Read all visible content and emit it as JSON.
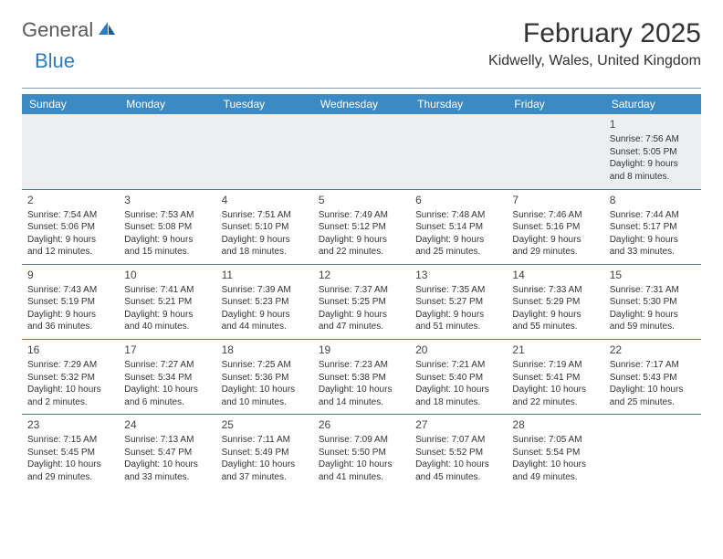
{
  "logo": {
    "part1": "General",
    "part2": "Blue"
  },
  "title": "February 2025",
  "location": "Kidwelly, Wales, United Kingdom",
  "colors": {
    "header_bg": "#3b8ac4",
    "brand_blue": "#2f7ac0",
    "brand_gray": "#5a5a5a",
    "row_sep": "#4a7ca8",
    "shade": "#eceff1"
  },
  "day_headers": [
    "Sunday",
    "Monday",
    "Tuesday",
    "Wednesday",
    "Thursday",
    "Friday",
    "Saturday"
  ],
  "weeks": [
    [
      null,
      null,
      null,
      null,
      null,
      null,
      {
        "n": "1",
        "sr": "Sunrise: 7:56 AM",
        "ss": "Sunset: 5:05 PM",
        "dl": "Daylight: 9 hours and 8 minutes."
      }
    ],
    [
      {
        "n": "2",
        "sr": "Sunrise: 7:54 AM",
        "ss": "Sunset: 5:06 PM",
        "dl": "Daylight: 9 hours and 12 minutes."
      },
      {
        "n": "3",
        "sr": "Sunrise: 7:53 AM",
        "ss": "Sunset: 5:08 PM",
        "dl": "Daylight: 9 hours and 15 minutes."
      },
      {
        "n": "4",
        "sr": "Sunrise: 7:51 AM",
        "ss": "Sunset: 5:10 PM",
        "dl": "Daylight: 9 hours and 18 minutes."
      },
      {
        "n": "5",
        "sr": "Sunrise: 7:49 AM",
        "ss": "Sunset: 5:12 PM",
        "dl": "Daylight: 9 hours and 22 minutes."
      },
      {
        "n": "6",
        "sr": "Sunrise: 7:48 AM",
        "ss": "Sunset: 5:14 PM",
        "dl": "Daylight: 9 hours and 25 minutes."
      },
      {
        "n": "7",
        "sr": "Sunrise: 7:46 AM",
        "ss": "Sunset: 5:16 PM",
        "dl": "Daylight: 9 hours and 29 minutes."
      },
      {
        "n": "8",
        "sr": "Sunrise: 7:44 AM",
        "ss": "Sunset: 5:17 PM",
        "dl": "Daylight: 9 hours and 33 minutes."
      }
    ],
    [
      {
        "n": "9",
        "sr": "Sunrise: 7:43 AM",
        "ss": "Sunset: 5:19 PM",
        "dl": "Daylight: 9 hours and 36 minutes."
      },
      {
        "n": "10",
        "sr": "Sunrise: 7:41 AM",
        "ss": "Sunset: 5:21 PM",
        "dl": "Daylight: 9 hours and 40 minutes."
      },
      {
        "n": "11",
        "sr": "Sunrise: 7:39 AM",
        "ss": "Sunset: 5:23 PM",
        "dl": "Daylight: 9 hours and 44 minutes."
      },
      {
        "n": "12",
        "sr": "Sunrise: 7:37 AM",
        "ss": "Sunset: 5:25 PM",
        "dl": "Daylight: 9 hours and 47 minutes."
      },
      {
        "n": "13",
        "sr": "Sunrise: 7:35 AM",
        "ss": "Sunset: 5:27 PM",
        "dl": "Daylight: 9 hours and 51 minutes."
      },
      {
        "n": "14",
        "sr": "Sunrise: 7:33 AM",
        "ss": "Sunset: 5:29 PM",
        "dl": "Daylight: 9 hours and 55 minutes."
      },
      {
        "n": "15",
        "sr": "Sunrise: 7:31 AM",
        "ss": "Sunset: 5:30 PM",
        "dl": "Daylight: 9 hours and 59 minutes."
      }
    ],
    [
      {
        "n": "16",
        "sr": "Sunrise: 7:29 AM",
        "ss": "Sunset: 5:32 PM",
        "dl": "Daylight: 10 hours and 2 minutes."
      },
      {
        "n": "17",
        "sr": "Sunrise: 7:27 AM",
        "ss": "Sunset: 5:34 PM",
        "dl": "Daylight: 10 hours and 6 minutes."
      },
      {
        "n": "18",
        "sr": "Sunrise: 7:25 AM",
        "ss": "Sunset: 5:36 PM",
        "dl": "Daylight: 10 hours and 10 minutes."
      },
      {
        "n": "19",
        "sr": "Sunrise: 7:23 AM",
        "ss": "Sunset: 5:38 PM",
        "dl": "Daylight: 10 hours and 14 minutes."
      },
      {
        "n": "20",
        "sr": "Sunrise: 7:21 AM",
        "ss": "Sunset: 5:40 PM",
        "dl": "Daylight: 10 hours and 18 minutes."
      },
      {
        "n": "21",
        "sr": "Sunrise: 7:19 AM",
        "ss": "Sunset: 5:41 PM",
        "dl": "Daylight: 10 hours and 22 minutes."
      },
      {
        "n": "22",
        "sr": "Sunrise: 7:17 AM",
        "ss": "Sunset: 5:43 PM",
        "dl": "Daylight: 10 hours and 25 minutes."
      }
    ],
    [
      {
        "n": "23",
        "sr": "Sunrise: 7:15 AM",
        "ss": "Sunset: 5:45 PM",
        "dl": "Daylight: 10 hours and 29 minutes."
      },
      {
        "n": "24",
        "sr": "Sunrise: 7:13 AM",
        "ss": "Sunset: 5:47 PM",
        "dl": "Daylight: 10 hours and 33 minutes."
      },
      {
        "n": "25",
        "sr": "Sunrise: 7:11 AM",
        "ss": "Sunset: 5:49 PM",
        "dl": "Daylight: 10 hours and 37 minutes."
      },
      {
        "n": "26",
        "sr": "Sunrise: 7:09 AM",
        "ss": "Sunset: 5:50 PM",
        "dl": "Daylight: 10 hours and 41 minutes."
      },
      {
        "n": "27",
        "sr": "Sunrise: 7:07 AM",
        "ss": "Sunset: 5:52 PM",
        "dl": "Daylight: 10 hours and 45 minutes."
      },
      {
        "n": "28",
        "sr": "Sunrise: 7:05 AM",
        "ss": "Sunset: 5:54 PM",
        "dl": "Daylight: 10 hours and 49 minutes."
      },
      null
    ]
  ]
}
